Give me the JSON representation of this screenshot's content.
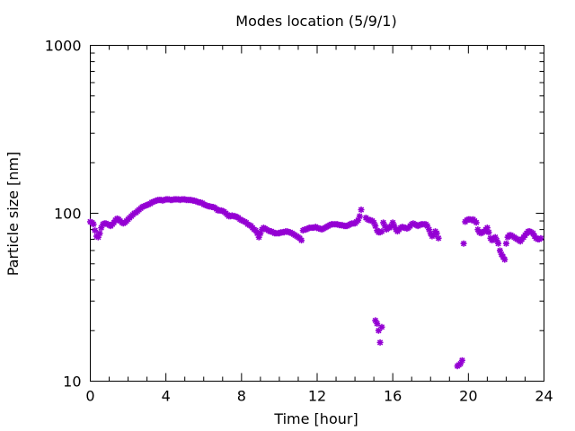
{
  "chart_data": {
    "type": "scatter",
    "title": "Modes location (5/9/1)",
    "xlabel": "Time [hour]",
    "ylabel": "Particle size [nm]",
    "xlim": [
      0,
      24
    ],
    "ylim": [
      10,
      1000
    ],
    "yscale": "log",
    "x_ticks": [
      0,
      4,
      8,
      12,
      16,
      20,
      24
    ],
    "x_tick_labels": [
      "0",
      "4",
      "8",
      "12",
      "16",
      "20",
      "24"
    ],
    "y_ticks": [
      10,
      100,
      1000
    ],
    "y_tick_labels": [
      "10",
      "100",
      "1000"
    ],
    "marker_color": "#9400d3",
    "series": [
      {
        "points": [
          [
            0.0,
            89
          ],
          [
            0.08,
            88
          ],
          [
            0.17,
            86
          ],
          [
            0.25,
            79
          ],
          [
            0.33,
            73
          ],
          [
            0.42,
            72
          ],
          [
            0.5,
            76
          ],
          [
            0.58,
            82
          ],
          [
            0.67,
            86
          ],
          [
            0.75,
            87
          ],
          [
            0.83,
            87
          ],
          [
            0.92,
            86
          ],
          [
            1.0,
            85
          ],
          [
            1.08,
            84
          ],
          [
            1.17,
            86
          ],
          [
            1.25,
            88
          ],
          [
            1.33,
            91
          ],
          [
            1.42,
            93
          ],
          [
            1.5,
            92
          ],
          [
            1.58,
            90
          ],
          [
            1.67,
            88
          ],
          [
            1.75,
            87
          ],
          [
            1.83,
            88
          ],
          [
            1.92,
            90
          ],
          [
            2.0,
            92
          ],
          [
            2.08,
            94
          ],
          [
            2.17,
            96
          ],
          [
            2.25,
            98
          ],
          [
            2.33,
            100
          ],
          [
            2.42,
            101
          ],
          [
            2.5,
            103
          ],
          [
            2.58,
            105
          ],
          [
            2.67,
            107
          ],
          [
            2.75,
            109
          ],
          [
            2.83,
            110
          ],
          [
            2.92,
            111
          ],
          [
            3.0,
            112
          ],
          [
            3.08,
            113
          ],
          [
            3.17,
            114
          ],
          [
            3.25,
            116
          ],
          [
            3.33,
            117
          ],
          [
            3.42,
            118
          ],
          [
            3.5,
            119
          ],
          [
            3.58,
            120
          ],
          [
            3.67,
            120
          ],
          [
            3.75,
            120
          ],
          [
            3.83,
            119
          ],
          [
            3.92,
            120
          ],
          [
            4.0,
            121
          ],
          [
            4.08,
            121
          ],
          [
            4.17,
            121
          ],
          [
            4.25,
            120
          ],
          [
            4.33,
            120
          ],
          [
            4.42,
            121
          ],
          [
            4.5,
            121
          ],
          [
            4.58,
            121
          ],
          [
            4.67,
            121
          ],
          [
            4.75,
            120
          ],
          [
            4.83,
            121
          ],
          [
            4.92,
            121
          ],
          [
            5.0,
            121
          ],
          [
            5.08,
            120
          ],
          [
            5.17,
            120
          ],
          [
            5.25,
            120
          ],
          [
            5.33,
            120
          ],
          [
            5.42,
            119
          ],
          [
            5.5,
            119
          ],
          [
            5.58,
            118
          ],
          [
            5.67,
            117
          ],
          [
            5.75,
            116
          ],
          [
            5.83,
            116
          ],
          [
            5.92,
            115
          ],
          [
            6.0,
            113
          ],
          [
            6.08,
            112
          ],
          [
            6.17,
            111
          ],
          [
            6.25,
            110
          ],
          [
            6.33,
            110
          ],
          [
            6.42,
            109
          ],
          [
            6.5,
            109
          ],
          [
            6.58,
            108
          ],
          [
            6.67,
            106
          ],
          [
            6.75,
            104
          ],
          [
            6.83,
            104
          ],
          [
            6.92,
            104
          ],
          [
            7.0,
            103
          ],
          [
            7.08,
            102
          ],
          [
            7.17,
            100
          ],
          [
            7.25,
            98
          ],
          [
            7.33,
            96
          ],
          [
            7.42,
            96
          ],
          [
            7.5,
            97
          ],
          [
            7.58,
            96
          ],
          [
            7.67,
            96
          ],
          [
            7.75,
            95
          ],
          [
            7.83,
            94
          ],
          [
            7.92,
            92
          ],
          [
            8.0,
            91
          ],
          [
            8.08,
            90
          ],
          [
            8.17,
            89
          ],
          [
            8.25,
            88
          ],
          [
            8.33,
            86
          ],
          [
            8.42,
            85
          ],
          [
            8.5,
            84
          ],
          [
            8.58,
            82
          ],
          [
            8.67,
            80
          ],
          [
            8.75,
            79
          ],
          [
            8.83,
            76
          ],
          [
            8.92,
            72
          ],
          [
            9.0,
            76
          ],
          [
            9.08,
            80
          ],
          [
            9.17,
            82
          ],
          [
            9.25,
            81
          ],
          [
            9.33,
            80
          ],
          [
            9.42,
            79
          ],
          [
            9.5,
            78
          ],
          [
            9.58,
            78
          ],
          [
            9.67,
            77
          ],
          [
            9.75,
            76
          ],
          [
            9.83,
            76
          ],
          [
            9.92,
            76
          ],
          [
            10.0,
            76
          ],
          [
            10.08,
            77
          ],
          [
            10.17,
            77
          ],
          [
            10.25,
            77
          ],
          [
            10.33,
            78
          ],
          [
            10.42,
            78
          ],
          [
            10.5,
            77
          ],
          [
            10.58,
            77
          ],
          [
            10.67,
            76
          ],
          [
            10.75,
            75
          ],
          [
            10.83,
            74
          ],
          [
            10.92,
            73
          ],
          [
            11.0,
            72
          ],
          [
            11.08,
            71
          ],
          [
            11.17,
            69
          ],
          [
            11.25,
            79
          ],
          [
            11.33,
            80
          ],
          [
            11.42,
            80
          ],
          [
            11.5,
            81
          ],
          [
            11.58,
            82
          ],
          [
            11.67,
            82
          ],
          [
            11.75,
            82
          ],
          [
            11.83,
            82
          ],
          [
            11.92,
            83
          ],
          [
            12.0,
            82
          ],
          [
            12.08,
            81
          ],
          [
            12.17,
            81
          ],
          [
            12.25,
            80
          ],
          [
            12.33,
            81
          ],
          [
            12.42,
            82
          ],
          [
            12.5,
            83
          ],
          [
            12.58,
            84
          ],
          [
            12.67,
            85
          ],
          [
            12.75,
            86
          ],
          [
            12.83,
            86
          ],
          [
            12.92,
            86
          ],
          [
            13.0,
            86
          ],
          [
            13.08,
            86
          ],
          [
            13.17,
            85
          ],
          [
            13.25,
            85
          ],
          [
            13.33,
            85
          ],
          [
            13.42,
            84
          ],
          [
            13.5,
            84
          ],
          [
            13.58,
            84
          ],
          [
            13.67,
            85
          ],
          [
            13.75,
            86
          ],
          [
            13.83,
            87
          ],
          [
            13.92,
            87
          ],
          [
            14.0,
            87
          ],
          [
            14.08,
            89
          ],
          [
            14.17,
            91
          ],
          [
            14.25,
            96
          ],
          [
            14.33,
            105
          ],
          [
            14.58,
            94
          ],
          [
            14.67,
            92
          ],
          [
            14.75,
            91
          ],
          [
            14.83,
            91
          ],
          [
            14.92,
            90
          ],
          [
            15.0,
            88
          ],
          [
            15.08,
            84
          ],
          [
            15.17,
            79
          ],
          [
            15.25,
            77
          ],
          [
            15.33,
            77
          ],
          [
            15.42,
            78
          ],
          [
            15.5,
            88
          ],
          [
            15.58,
            84
          ],
          [
            15.67,
            80
          ],
          [
            15.75,
            82
          ],
          [
            15.83,
            82
          ],
          [
            15.92,
            84
          ],
          [
            16.0,
            88
          ],
          [
            16.08,
            84
          ],
          [
            16.17,
            80
          ],
          [
            16.25,
            78
          ],
          [
            16.33,
            80
          ],
          [
            16.42,
            82
          ],
          [
            16.5,
            83
          ],
          [
            16.58,
            82
          ],
          [
            16.67,
            82
          ],
          [
            16.75,
            81
          ],
          [
            16.83,
            82
          ],
          [
            16.92,
            84
          ],
          [
            17.0,
            86
          ],
          [
            17.08,
            87
          ],
          [
            17.17,
            86
          ],
          [
            17.25,
            85
          ],
          [
            17.33,
            84
          ],
          [
            17.42,
            85
          ],
          [
            17.5,
            86
          ],
          [
            17.58,
            86
          ],
          [
            17.67,
            86
          ],
          [
            17.75,
            86
          ],
          [
            17.83,
            84
          ],
          [
            17.92,
            80
          ],
          [
            18.0,
            76
          ],
          [
            18.08,
            73
          ],
          [
            18.17,
            74
          ],
          [
            18.25,
            78
          ],
          [
            18.33,
            76
          ],
          [
            18.42,
            71
          ],
          [
            15.08,
            23
          ],
          [
            15.17,
            22
          ],
          [
            15.25,
            20
          ],
          [
            15.33,
            17
          ],
          [
            15.42,
            21
          ],
          [
            19.42,
            12.3
          ],
          [
            19.5,
            12.5
          ],
          [
            19.58,
            12.7
          ],
          [
            19.67,
            13.3
          ],
          [
            19.75,
            66
          ],
          [
            19.83,
            89
          ],
          [
            19.92,
            91
          ],
          [
            20.0,
            92
          ],
          [
            20.08,
            92
          ],
          [
            20.17,
            91
          ],
          [
            20.25,
            92
          ],
          [
            20.33,
            90
          ],
          [
            20.42,
            88
          ],
          [
            20.5,
            80
          ],
          [
            20.58,
            77
          ],
          [
            20.67,
            76
          ],
          [
            20.75,
            77
          ],
          [
            20.83,
            78
          ],
          [
            20.92,
            80
          ],
          [
            21.0,
            82
          ],
          [
            21.08,
            77
          ],
          [
            21.17,
            71
          ],
          [
            21.25,
            69
          ],
          [
            21.33,
            70
          ],
          [
            21.42,
            72
          ],
          [
            21.5,
            69
          ],
          [
            21.58,
            66
          ],
          [
            21.67,
            60
          ],
          [
            21.75,
            57
          ],
          [
            21.83,
            55
          ],
          [
            21.92,
            53
          ],
          [
            22.0,
            66
          ],
          [
            22.08,
            72
          ],
          [
            22.17,
            74
          ],
          [
            22.25,
            74
          ],
          [
            22.33,
            73
          ],
          [
            22.42,
            72
          ],
          [
            22.5,
            71
          ],
          [
            22.58,
            70
          ],
          [
            22.67,
            69
          ],
          [
            22.75,
            68
          ],
          [
            22.83,
            70
          ],
          [
            22.92,
            72
          ],
          [
            23.0,
            74
          ],
          [
            23.08,
            76
          ],
          [
            23.17,
            78
          ],
          [
            23.25,
            78
          ],
          [
            23.33,
            77
          ],
          [
            23.42,
            76
          ],
          [
            23.5,
            73
          ],
          [
            23.58,
            71
          ],
          [
            23.67,
            70
          ],
          [
            23.75,
            70
          ],
          [
            23.83,
            71
          ]
        ]
      }
    ]
  }
}
